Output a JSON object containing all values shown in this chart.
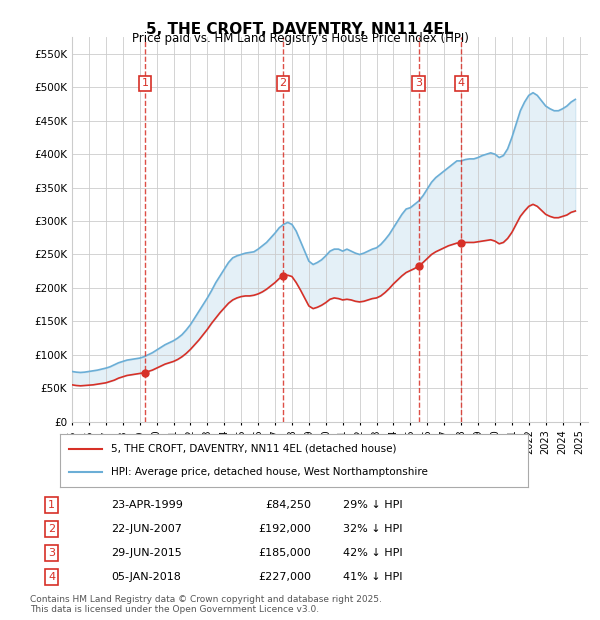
{
  "title": "5, THE CROFT, DAVENTRY, NN11 4EL",
  "subtitle": "Price paid vs. HM Land Registry's House Price Index (HPI)",
  "ylim": [
    0,
    575000
  ],
  "yticks": [
    0,
    50000,
    100000,
    150000,
    200000,
    250000,
    300000,
    350000,
    400000,
    450000,
    500000,
    550000
  ],
  "xlim_start": 1995.0,
  "xlim_end": 2025.5,
  "legend_line1": "5, THE CROFT, DAVENTRY, NN11 4EL (detached house)",
  "legend_line2": "HPI: Average price, detached house, West Northamptonshire",
  "footer1": "Contains HM Land Registry data © Crown copyright and database right 2025.",
  "footer2": "This data is licensed under the Open Government Licence v3.0.",
  "transactions": [
    {
      "num": 1,
      "date": "23-APR-1999",
      "price": 84250,
      "pct": "29% ↓ HPI",
      "year": 1999.31
    },
    {
      "num": 2,
      "date": "22-JUN-2007",
      "price": 192000,
      "pct": "32% ↓ HPI",
      "year": 2007.47
    },
    {
      "num": 3,
      "date": "29-JUN-2015",
      "price": 185000,
      "pct": "42% ↓ HPI",
      "year": 2015.49
    },
    {
      "num": 4,
      "date": "05-JAN-2018",
      "price": 227000,
      "pct": "41% ↓ HPI",
      "year": 2018.01
    }
  ],
  "hpi_color": "#6baed6",
  "price_color": "#d73027",
  "background_color": "#ddeeff",
  "plot_bg": "#ffffff",
  "hpi_data": {
    "years": [
      1995.0,
      1995.25,
      1995.5,
      1995.75,
      1996.0,
      1996.25,
      1996.5,
      1996.75,
      1997.0,
      1997.25,
      1997.5,
      1997.75,
      1998.0,
      1998.25,
      1998.5,
      1998.75,
      1999.0,
      1999.25,
      1999.5,
      1999.75,
      2000.0,
      2000.25,
      2000.5,
      2000.75,
      2001.0,
      2001.25,
      2001.5,
      2001.75,
      2002.0,
      2002.25,
      2002.5,
      2002.75,
      2003.0,
      2003.25,
      2003.5,
      2003.75,
      2004.0,
      2004.25,
      2004.5,
      2004.75,
      2005.0,
      2005.25,
      2005.5,
      2005.75,
      2006.0,
      2006.25,
      2006.5,
      2006.75,
      2007.0,
      2007.25,
      2007.5,
      2007.75,
      2008.0,
      2008.25,
      2008.5,
      2008.75,
      2009.0,
      2009.25,
      2009.5,
      2009.75,
      2010.0,
      2010.25,
      2010.5,
      2010.75,
      2011.0,
      2011.25,
      2011.5,
      2011.75,
      2012.0,
      2012.25,
      2012.5,
      2012.75,
      2013.0,
      2013.25,
      2013.5,
      2013.75,
      2014.0,
      2014.25,
      2014.5,
      2014.75,
      2015.0,
      2015.25,
      2015.5,
      2015.75,
      2016.0,
      2016.25,
      2016.5,
      2016.75,
      2017.0,
      2017.25,
      2017.5,
      2017.75,
      2018.0,
      2018.25,
      2018.5,
      2018.75,
      2019.0,
      2019.25,
      2019.5,
      2019.75,
      2020.0,
      2020.25,
      2020.5,
      2020.75,
      2021.0,
      2021.25,
      2021.5,
      2021.75,
      2022.0,
      2022.25,
      2022.5,
      2022.75,
      2023.0,
      2023.25,
      2023.5,
      2023.75,
      2024.0,
      2024.25,
      2024.5,
      2024.75
    ],
    "values": [
      75000,
      74000,
      73500,
      74000,
      75000,
      76000,
      77000,
      78500,
      80000,
      82000,
      85000,
      88000,
      90000,
      92000,
      93000,
      94000,
      95000,
      97000,
      100000,
      103000,
      107000,
      111000,
      115000,
      118000,
      121000,
      125000,
      130000,
      137000,
      145000,
      155000,
      165000,
      175000,
      185000,
      196000,
      208000,
      218000,
      228000,
      238000,
      245000,
      248000,
      250000,
      252000,
      253000,
      254000,
      258000,
      263000,
      268000,
      275000,
      282000,
      290000,
      295000,
      298000,
      295000,
      285000,
      270000,
      255000,
      240000,
      235000,
      238000,
      242000,
      248000,
      255000,
      258000,
      258000,
      255000,
      258000,
      255000,
      252000,
      250000,
      252000,
      255000,
      258000,
      260000,
      265000,
      272000,
      280000,
      290000,
      300000,
      310000,
      318000,
      320000,
      325000,
      330000,
      338000,
      348000,
      358000,
      365000,
      370000,
      375000,
      380000,
      385000,
      390000,
      390000,
      392000,
      393000,
      393000,
      395000,
      398000,
      400000,
      402000,
      400000,
      395000,
      398000,
      408000,
      425000,
      445000,
      465000,
      478000,
      488000,
      492000,
      488000,
      480000,
      472000,
      468000,
      465000,
      465000,
      468000,
      472000,
      478000,
      482000
    ]
  },
  "price_data": {
    "years": [
      1995.0,
      1995.25,
      1995.5,
      1995.75,
      1996.0,
      1996.25,
      1996.5,
      1996.75,
      1997.0,
      1997.25,
      1997.5,
      1997.75,
      1998.0,
      1998.25,
      1998.5,
      1998.75,
      1999.0,
      1999.25,
      1999.5,
      1999.75,
      2000.0,
      2000.25,
      2000.5,
      2000.75,
      2001.0,
      2001.25,
      2001.5,
      2001.75,
      2002.0,
      2002.25,
      2002.5,
      2002.75,
      2003.0,
      2003.25,
      2003.5,
      2003.75,
      2004.0,
      2004.25,
      2004.5,
      2004.75,
      2005.0,
      2005.25,
      2005.5,
      2005.75,
      2006.0,
      2006.25,
      2006.5,
      2006.75,
      2007.0,
      2007.25,
      2007.5,
      2007.75,
      2008.0,
      2008.25,
      2008.5,
      2008.75,
      2009.0,
      2009.25,
      2009.5,
      2009.75,
      2010.0,
      2010.25,
      2010.5,
      2010.75,
      2011.0,
      2011.25,
      2011.5,
      2011.75,
      2012.0,
      2012.25,
      2012.5,
      2012.75,
      2013.0,
      2013.25,
      2013.5,
      2013.75,
      2014.0,
      2014.25,
      2014.5,
      2014.75,
      2015.0,
      2015.25,
      2015.5,
      2015.75,
      2016.0,
      2016.25,
      2016.5,
      2016.75,
      2017.0,
      2017.25,
      2017.5,
      2017.75,
      2018.0,
      2018.25,
      2018.5,
      2018.75,
      2019.0,
      2019.25,
      2019.5,
      2019.75,
      2020.0,
      2020.25,
      2020.5,
      2020.75,
      2021.0,
      2021.25,
      2021.5,
      2021.75,
      2022.0,
      2022.25,
      2022.5,
      2022.75,
      2023.0,
      2023.25,
      2023.5,
      2023.75,
      2024.0,
      2024.25,
      2024.5,
      2024.75
    ],
    "values": [
      55000,
      54000,
      53500,
      54000,
      54500,
      55000,
      56000,
      57000,
      58000,
      60000,
      62000,
      65000,
      67000,
      69000,
      70000,
      71000,
      72000,
      73000,
      75000,
      77000,
      80000,
      83000,
      86000,
      88000,
      90000,
      93000,
      97000,
      102000,
      108000,
      115000,
      122000,
      130000,
      138000,
      147000,
      155000,
      163000,
      170000,
      177000,
      182000,
      185000,
      187000,
      188000,
      188000,
      189000,
      191000,
      194000,
      198000,
      203000,
      208000,
      214000,
      218000,
      219000,
      217000,
      208000,
      197000,
      185000,
      173000,
      169000,
      171000,
      174000,
      178000,
      183000,
      185000,
      184000,
      182000,
      183000,
      182000,
      180000,
      179000,
      180000,
      182000,
      184000,
      185000,
      188000,
      193000,
      199000,
      206000,
      212000,
      218000,
      223000,
      226000,
      229000,
      233000,
      238000,
      244000,
      250000,
      254000,
      257000,
      260000,
      263000,
      265000,
      267000,
      267000,
      268000,
      268000,
      268000,
      269000,
      270000,
      271000,
      272000,
      270000,
      266000,
      268000,
      274000,
      283000,
      295000,
      307000,
      315000,
      322000,
      325000,
      322000,
      316000,
      310000,
      307000,
      305000,
      305000,
      307000,
      309000,
      313000,
      315000
    ]
  }
}
